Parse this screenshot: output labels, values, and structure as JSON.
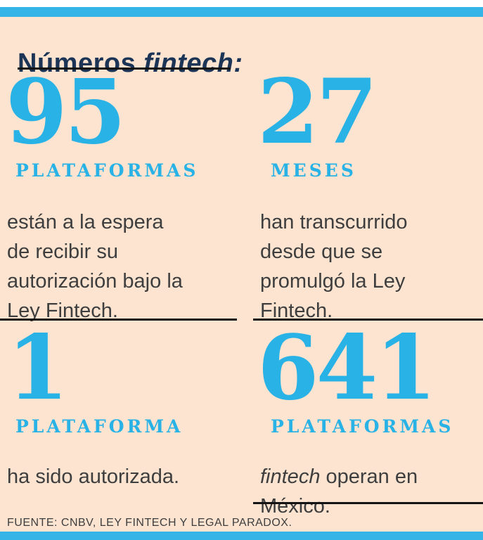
{
  "colors": {
    "accent_cyan": "#35b4e7",
    "number_cyan": "#29b2e5",
    "background_peach": "#fce4d1",
    "title_navy": "#1c3557",
    "body_text": "#3e3e3e",
    "rule_black": "#141414"
  },
  "header": {
    "title_regular": "Números ",
    "title_italic": "fintech:"
  },
  "stats": [
    {
      "value": "95",
      "label": "PLATAFORMAS",
      "desc": "están a la espera\nde recibir su\nautorización bajo la\nLey Fintech."
    },
    {
      "value": "27",
      "label": "MESES",
      "desc": "han transcurrido\ndesde que se\npromulgó la Ley\nFintech."
    },
    {
      "value": "1",
      "label": "PLATAFORMA",
      "desc": "ha sido autorizada."
    },
    {
      "value": "641",
      "label": "PLATAFORMAS",
      "desc_italic": "fintech",
      "desc_rest": " operan en\nMéxico."
    }
  ],
  "footer": {
    "source": "FUENTE: CNBV, LEY FINTECH Y LEGAL PARADOX."
  },
  "chart_data": {
    "type": "table",
    "title": "Números fintech:",
    "categories": [
      "PLATAFORMAS",
      "MESES",
      "PLATAFORMA",
      "PLATAFORMAS fintech"
    ],
    "values": [
      95,
      27,
      1,
      641
    ],
    "notes": [
      "están a la espera de recibir su autorización bajo la Ley Fintech.",
      "han transcurrido desde que se promulgó la Ley Fintech.",
      "ha sido autorizada.",
      "fintech operan en México."
    ],
    "source": "FUENTE: CNBV, LEY FINTECH Y LEGAL PARADOX.",
    "layout": "2x2 grid of large numbers with captions"
  }
}
